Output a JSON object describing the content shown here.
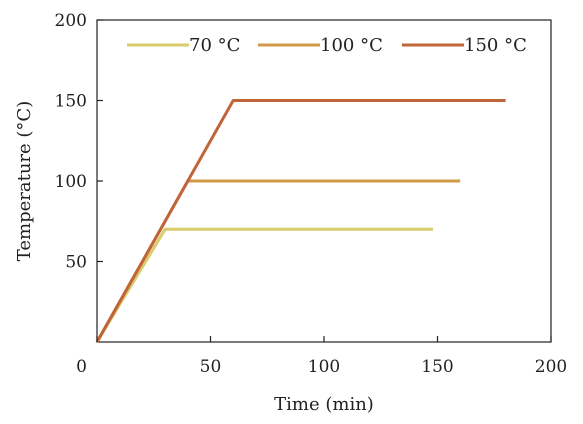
{
  "chart_data": {
    "type": "line",
    "xlabel": "Time (min)",
    "ylabel": "Temperature (°C)",
    "xlim": [
      0,
      200
    ],
    "ylim": [
      0,
      200
    ],
    "xticks": [
      0,
      50,
      100,
      150,
      200
    ],
    "xtick_labels": [
      "0",
      "50",
      "100",
      "150",
      "200"
    ],
    "yticks": [
      50,
      100,
      150,
      200
    ],
    "ytick_labels": [
      "50",
      "100",
      "150",
      "200"
    ],
    "grid": false,
    "legend_position": "top",
    "series": [
      {
        "name": "70 °C",
        "color": "#d9cc6a",
        "x": [
          0,
          30,
          148
        ],
        "y": [
          0,
          70,
          70
        ]
      },
      {
        "name": "100 °C",
        "color": "#d49a4a",
        "x": [
          0,
          40,
          160
        ],
        "y": [
          0,
          100,
          100
        ]
      },
      {
        "name": "150 °C",
        "color": "#c0643a",
        "x": [
          0,
          60,
          180
        ],
        "y": [
          0,
          150,
          150
        ]
      }
    ]
  }
}
